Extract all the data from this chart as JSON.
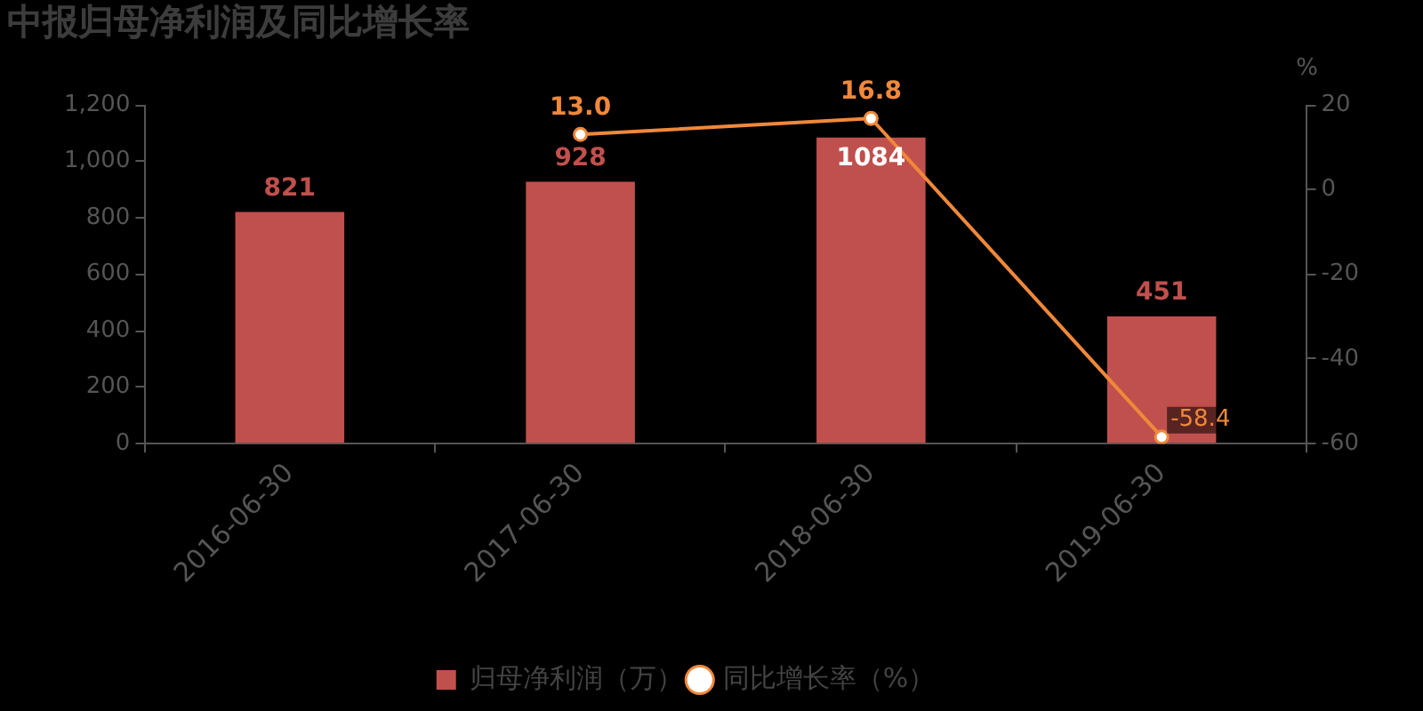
{
  "chart_data": {
    "type": "bar",
    "title": "中报归母净利润及同比增长率",
    "y2label": "%",
    "categories": [
      "2016-06-30",
      "2017-06-30",
      "2018-06-30",
      "2019-06-30"
    ],
    "series": [
      {
        "name": "归母净利润（万）",
        "type": "bar",
        "color": "#c0504d",
        "values": [
          821,
          928,
          1084,
          451
        ],
        "value_labels": [
          "821",
          "928",
          "1084",
          "451"
        ]
      },
      {
        "name": "同比增长率（%）",
        "type": "line",
        "axis": "y2",
        "color": "#f0883a",
        "values": [
          null,
          13.0,
          16.8,
          -58.4
        ],
        "value_labels": [
          null,
          "13.0",
          "16.8",
          "-58.4"
        ]
      }
    ],
    "ylim": [
      0,
      1200
    ],
    "yticks": [
      0,
      200,
      400,
      600,
      800,
      {
        "value": 1000,
        "label": "1,000"
      },
      {
        "value": 1200,
        "label": "1,200"
      }
    ],
    "y2lim": [
      -60,
      20
    ],
    "y2ticks": [
      -60,
      -40,
      -20,
      0,
      20
    ],
    "legend": "bottom",
    "marker": "circle"
  }
}
